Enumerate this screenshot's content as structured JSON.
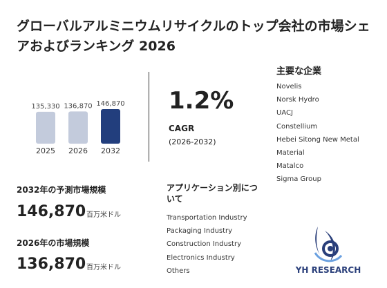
{
  "title": "グローバルアルミニウムリサイクルのトップ会社の市場シェアおよびランキング 2026",
  "chart_data": {
    "type": "bar",
    "categories": [
      "2025",
      "2026",
      "2032"
    ],
    "values": [
      135330,
      136870,
      146870
    ],
    "value_labels": [
      "135,330",
      "136,870",
      "146,870"
    ],
    "colors": [
      "#c3cbdc",
      "#c3cbdc",
      "#223e7d"
    ]
  },
  "cagr": {
    "value": "1.2%",
    "label": "CAGR",
    "period": "(2026-2032)"
  },
  "players": {
    "title": "主要な企業",
    "items": [
      "Novelis",
      "Norsk Hydro",
      "UACJ",
      "Constellium",
      "Hebei Sitong New Metal",
      "Material",
      "Matalco",
      "Sigma Group"
    ]
  },
  "stats": {
    "forecast_label": "2032年の予測市場規模",
    "forecast_value": "146,870",
    "forecast_unit": "百万米ドル",
    "current_label": "2026年の市場規模",
    "current_value": "136,870",
    "current_unit": "百万米ドル"
  },
  "applications": {
    "title": "アプリケーション別について",
    "items": [
      "Transportation Industry",
      "Packaging Industry",
      "Construction Industry",
      "Electronics Industry",
      "Others"
    ]
  },
  "logo": {
    "text": "YH RESEARCH",
    "color": "#2a3f7a"
  }
}
